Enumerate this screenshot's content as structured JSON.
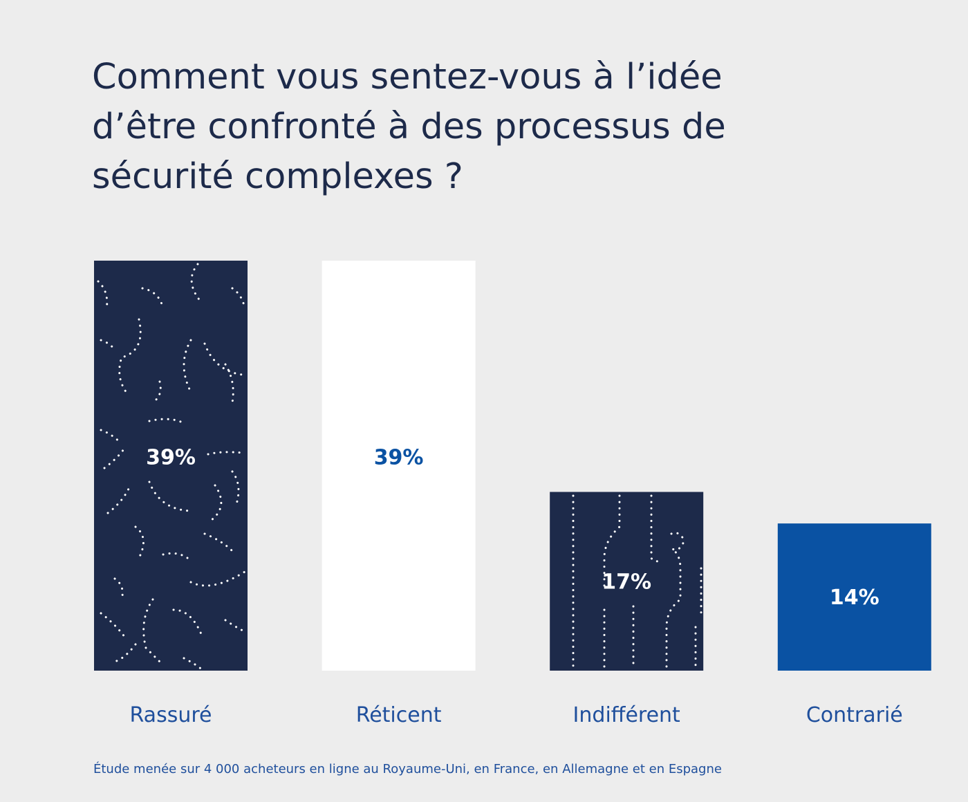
{
  "colors": {
    "background": "#ededed",
    "navy": "#1d2a4a",
    "blue": "#0a52a3",
    "white": "#ffffff",
    "label_blue": "#1f4f9c"
  },
  "chart_data": {
    "type": "bar",
    "title": "Comment vous sentez-vous à l’idée d’être confronté à des processus de sécurité complexes ?",
    "categories": [
      "Rassuré",
      "Réticent",
      "Indifférent",
      "Contrarié"
    ],
    "values": [
      39,
      39,
      17,
      14
    ],
    "value_labels": [
      "39%",
      "39%",
      "17%",
      "14%"
    ],
    "unit": "%",
    "ylim": [
      0,
      39
    ],
    "grid": false,
    "legend": "none",
    "bar_styles": [
      "navy-dotted-swirls",
      "white",
      "navy-dotted-circuits",
      "blue"
    ],
    "xlabel": "",
    "ylabel": ""
  },
  "footnote": "Étude menée sur 4 000 acheteurs en ligne au Royaume-Uni, en France, en Allemagne et en Espagne"
}
